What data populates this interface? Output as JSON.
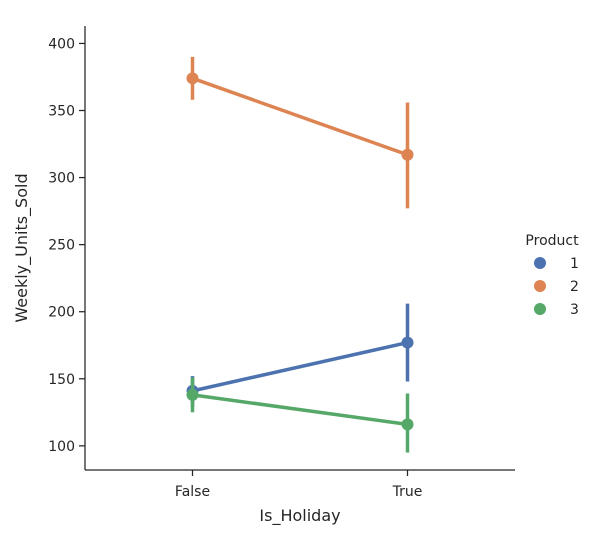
{
  "chart_data": {
    "type": "line",
    "title": "",
    "xlabel": "Is_Holiday",
    "ylabel": "Weekly_Units_Sold",
    "categories": [
      "False",
      "True"
    ],
    "ylim": [
      82,
      413
    ],
    "yticks": [
      100,
      150,
      200,
      250,
      300,
      350,
      400
    ],
    "grid": false,
    "legend": {
      "title": "Product",
      "placement": "right"
    },
    "series": [
      {
        "name": "1",
        "color": "#4c72b0",
        "values": [
          141,
          177
        ],
        "ci_low": [
          129,
          148
        ],
        "ci_high": [
          152,
          206
        ]
      },
      {
        "name": "2",
        "color": "#dd8452",
        "values": [
          374,
          317
        ],
        "ci_low": [
          358,
          277
        ],
        "ci_high": [
          390,
          356
        ]
      },
      {
        "name": "3",
        "color": "#55a868",
        "values": [
          138,
          116
        ],
        "ci_low": [
          125,
          95
        ],
        "ci_high": [
          151,
          139
        ]
      }
    ]
  }
}
